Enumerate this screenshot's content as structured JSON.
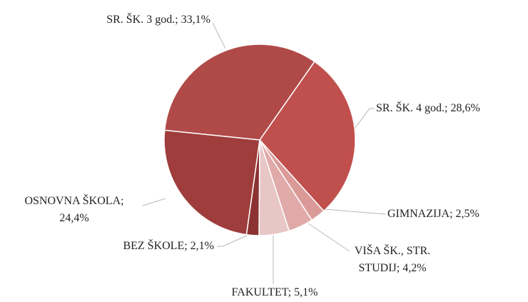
{
  "chart_data": {
    "type": "pie",
    "values": [
      28.6,
      2.5,
      4.2,
      5.1,
      2.1,
      24.4,
      33.1
    ],
    "value_labels": [
      "SR. ŠK. 4 god.; 28,6%",
      "GIMNAZIJA; 2,5%",
      "VIŠA ŠK., STR.\nSTUDIJ; 4,2%",
      "FAKULTET; 5,1%",
      "BEZ ŠKOLE; 2,1%",
      "OSNOVNA ŠKOLA;\n24,4%",
      "SR. ŠK. 3 god.; 33,1%"
    ],
    "colors": [
      "#c0504d",
      "#d99a98",
      "#e0aaa9",
      "#e9c6c6",
      "#8b3332",
      "#9e3d3b",
      "#b04a48"
    ]
  }
}
